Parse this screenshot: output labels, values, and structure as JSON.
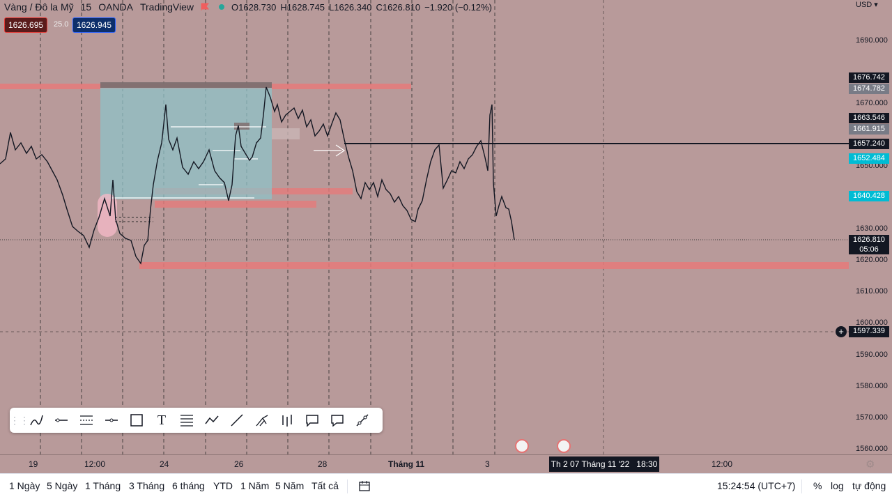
{
  "legend": {
    "symbol": "Vàng / Đô la Mỹ",
    "interval": "15",
    "broker": "OANDA",
    "source": "TradingView",
    "open": "O1628.730",
    "high": "H1628.745",
    "low": "L1626.340",
    "close": "C1626.810",
    "change": "−1.920 (−0.12%)"
  },
  "price_boxes": {
    "sell": "1626.695",
    "spread": "25.0",
    "buy": "1626.945"
  },
  "currency": "USD",
  "price_axis": {
    "labels": [
      "1690.000",
      "1670.000",
      "1650.000",
      "1630.000",
      "1620.000",
      "1610.000",
      "1600.000",
      "1590.000",
      "1580.000",
      "1570.000",
      "1560.000"
    ],
    "tags": {
      "t1": "1676.742",
      "t2": "1674.782",
      "t3": "1663.546",
      "t4": "1661.915",
      "t5": "1657.240",
      "t6": "1652.484",
      "t7": "1640.428",
      "current_price": "1626.810",
      "countdown": "05:06",
      "crosshair": "1597.339"
    }
  },
  "time_axis": {
    "labels": [
      "19",
      "12:00",
      "24",
      "26",
      "28",
      "Tháng 11",
      "3",
      "12:00"
    ],
    "crosshair_label": "Th 2 07 Tháng 11 '22   18:30"
  },
  "toolbar": {
    "icons": [
      "brush-icon",
      "horizontal-ray-icon",
      "parallel-channel-icon",
      "horizontal-line-icon",
      "rectangle-icon",
      "text-icon",
      "fib-retracement-icon",
      "path-icon",
      "trend-line-icon",
      "pitchfork-icon",
      "long-short-icon",
      "callout-icon",
      "comment-icon",
      "extended-line-icon"
    ],
    "text_tool": "T"
  },
  "bottom_bar": {
    "ranges": [
      "1 Ngày",
      "5 Ngày",
      "1 Tháng",
      "3 Tháng",
      "6 tháng",
      "YTD",
      "1 Năm",
      "5 Năm",
      "Tất cả"
    ],
    "clock": "15:24:54 (UTC+7)",
    "percent": "%",
    "log": "log",
    "auto": "tự động"
  },
  "colors": {
    "background": "#b89a9a",
    "zone": "#e57a7a",
    "box": "#8fc1c7",
    "current_tag": "#131722",
    "cyan_tag": "#00bcd4",
    "grey_tag": "#787b86"
  }
}
